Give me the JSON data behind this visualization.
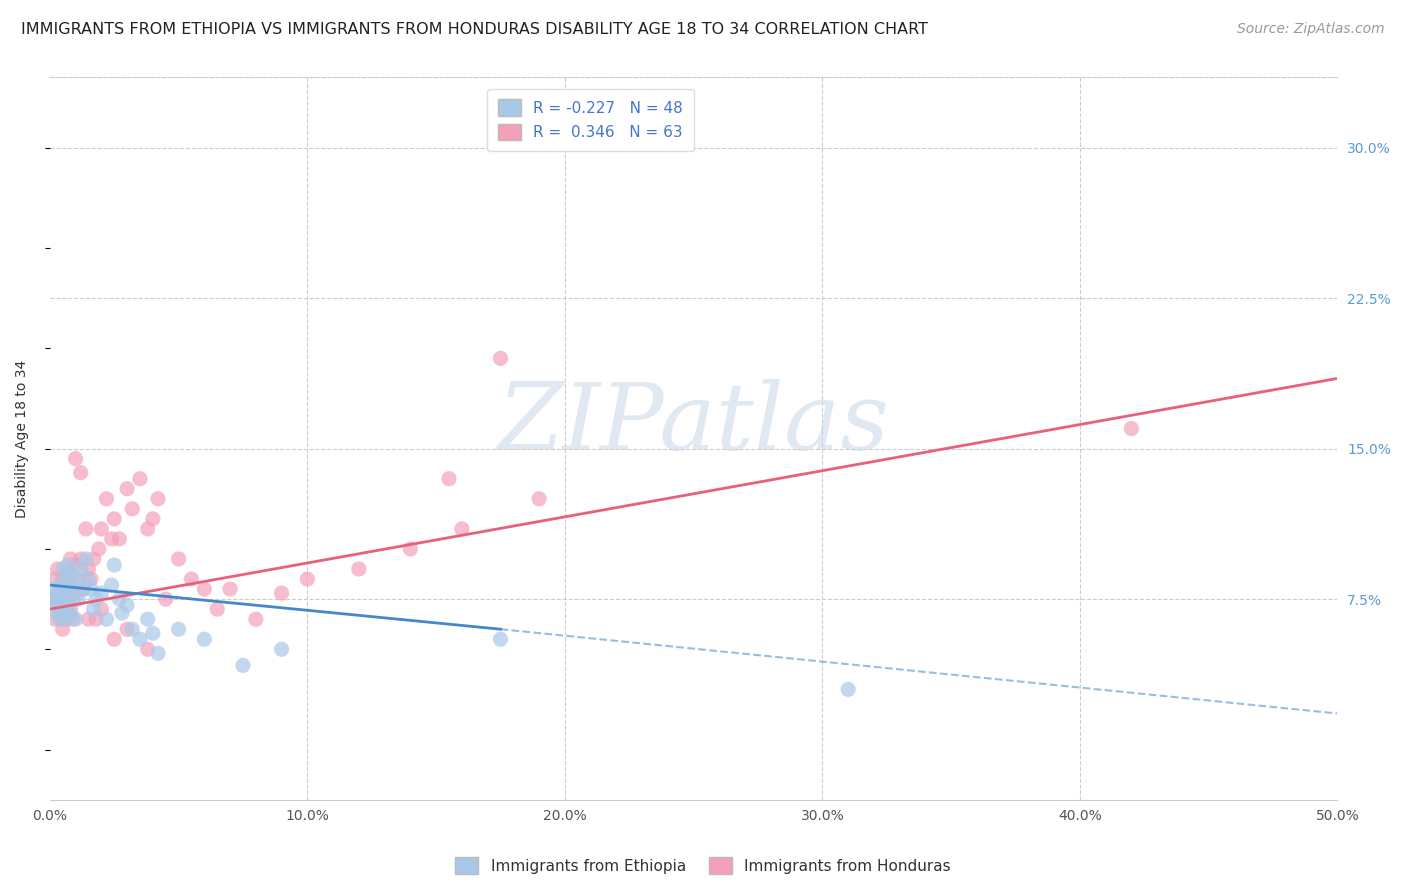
{
  "title": "IMMIGRANTS FROM ETHIOPIA VS IMMIGRANTS FROM HONDURAS DISABILITY AGE 18 TO 34 CORRELATION CHART",
  "source": "Source: ZipAtlas.com",
  "ylabel": "Disability Age 18 to 34",
  "xlim": [
    0.0,
    0.5
  ],
  "ylim": [
    -0.025,
    0.335
  ],
  "xticks": [
    0.0,
    0.1,
    0.2,
    0.3,
    0.4,
    0.5
  ],
  "xticklabels": [
    "0.0%",
    "10.0%",
    "20.0%",
    "30.0%",
    "40.0%",
    "50.0%"
  ],
  "yticks_right": [
    0.075,
    0.15,
    0.225,
    0.3
  ],
  "ytick_right_labels": [
    "7.5%",
    "15.0%",
    "22.5%",
    "30.0%"
  ],
  "color_ethiopia": "#a8c8e8",
  "color_honduras": "#f4a0b8",
  "line_color_ethiopia": "#4488cc",
  "line_color_honduras": "#e8607a",
  "R_ethiopia": -0.227,
  "N_ethiopia": 48,
  "R_honduras": 0.346,
  "N_honduras": 63,
  "legend_label_ethiopia": "Immigrants from Ethiopia",
  "legend_label_honduras": "Immigrants from Honduras",
  "watermark_text": "ZIPatlas",
  "background_color": "#ffffff",
  "grid_color": "#cccccc",
  "eth_line_x0": 0.0,
  "eth_line_y0": 0.082,
  "eth_line_x1": 0.175,
  "eth_line_y1": 0.06,
  "eth_line_xdash0": 0.175,
  "eth_line_ydash0": 0.06,
  "eth_line_xdash1": 0.5,
  "eth_line_ydash1": 0.018,
  "hon_line_x0": 0.0,
  "hon_line_y0": 0.07,
  "hon_line_x1": 0.5,
  "hon_line_y1": 0.185,
  "ethiopia_x": [
    0.001,
    0.002,
    0.002,
    0.003,
    0.003,
    0.004,
    0.004,
    0.005,
    0.005,
    0.005,
    0.006,
    0.006,
    0.006,
    0.007,
    0.007,
    0.007,
    0.008,
    0.008,
    0.009,
    0.009,
    0.01,
    0.01,
    0.011,
    0.012,
    0.013,
    0.014,
    0.015,
    0.016,
    0.017,
    0.018,
    0.02,
    0.022,
    0.024,
    0.025,
    0.027,
    0.028,
    0.03,
    0.032,
    0.035,
    0.038,
    0.04,
    0.042,
    0.05,
    0.06,
    0.075,
    0.09,
    0.175,
    0.31
  ],
  "ethiopia_y": [
    0.075,
    0.08,
    0.072,
    0.078,
    0.068,
    0.082,
    0.065,
    0.09,
    0.075,
    0.07,
    0.085,
    0.078,
    0.065,
    0.092,
    0.08,
    0.072,
    0.088,
    0.068,
    0.082,
    0.075,
    0.085,
    0.065,
    0.075,
    0.09,
    0.08,
    0.095,
    0.085,
    0.08,
    0.07,
    0.075,
    0.078,
    0.065,
    0.082,
    0.092,
    0.075,
    0.068,
    0.072,
    0.06,
    0.055,
    0.065,
    0.058,
    0.048,
    0.06,
    0.055,
    0.042,
    0.05,
    0.055,
    0.03
  ],
  "honduras_x": [
    0.001,
    0.002,
    0.002,
    0.003,
    0.003,
    0.004,
    0.004,
    0.005,
    0.005,
    0.005,
    0.006,
    0.006,
    0.007,
    0.007,
    0.008,
    0.008,
    0.009,
    0.009,
    0.01,
    0.01,
    0.011,
    0.012,
    0.013,
    0.014,
    0.015,
    0.016,
    0.017,
    0.018,
    0.019,
    0.02,
    0.022,
    0.024,
    0.025,
    0.027,
    0.03,
    0.032,
    0.035,
    0.038,
    0.04,
    0.042,
    0.045,
    0.05,
    0.055,
    0.06,
    0.065,
    0.07,
    0.08,
    0.09,
    0.1,
    0.12,
    0.14,
    0.16,
    0.175,
    0.19,
    0.01,
    0.012,
    0.015,
    0.02,
    0.025,
    0.03,
    0.038,
    0.42,
    0.155
  ],
  "honduras_y": [
    0.075,
    0.085,
    0.065,
    0.09,
    0.075,
    0.08,
    0.068,
    0.072,
    0.085,
    0.06,
    0.078,
    0.065,
    0.088,
    0.075,
    0.095,
    0.07,
    0.08,
    0.065,
    0.092,
    0.078,
    0.085,
    0.095,
    0.08,
    0.11,
    0.09,
    0.085,
    0.095,
    0.065,
    0.1,
    0.11,
    0.125,
    0.105,
    0.115,
    0.105,
    0.13,
    0.12,
    0.135,
    0.11,
    0.115,
    0.125,
    0.075,
    0.095,
    0.085,
    0.08,
    0.07,
    0.08,
    0.065,
    0.078,
    0.085,
    0.09,
    0.1,
    0.11,
    0.195,
    0.125,
    0.145,
    0.138,
    0.065,
    0.07,
    0.055,
    0.06,
    0.05,
    0.16,
    0.135
  ],
  "title_fontsize": 11.5,
  "axis_label_fontsize": 10,
  "tick_fontsize": 10,
  "legend_fontsize": 11,
  "source_fontsize": 10
}
